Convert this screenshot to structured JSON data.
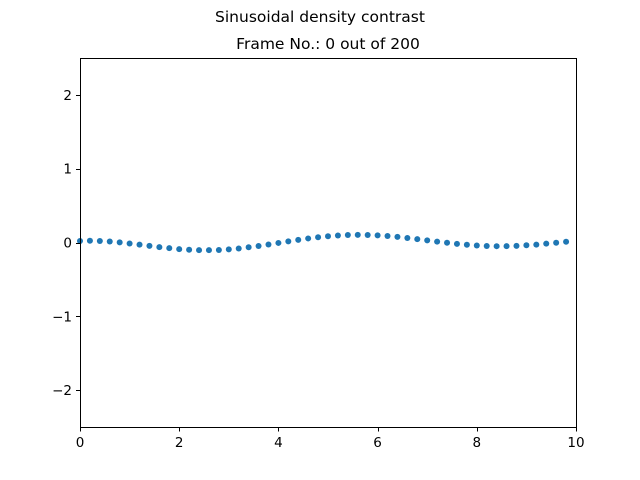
{
  "figure": {
    "suptitle": "Sinusoidal density contrast"
  },
  "chart_data": {
    "type": "scatter",
    "title": "Frame No.: 0 out of 200",
    "xlabel": "",
    "ylabel": "",
    "xlim": [
      0,
      10
    ],
    "ylim": [
      -2.5,
      2.5
    ],
    "grid": false,
    "legend": "none",
    "xticks": [
      0,
      2,
      4,
      6,
      8,
      10
    ],
    "xtick_labels": [
      "0",
      "2",
      "4",
      "6",
      "8",
      "10"
    ],
    "yticks": [
      -2,
      -1,
      0,
      1,
      2
    ],
    "ytick_labels": [
      "−2",
      "−1",
      "0",
      "1",
      "2"
    ],
    "marker_color": "#1f77b4",
    "series": [
      {
        "x": [
          0.0,
          0.2,
          0.4,
          0.6,
          0.8,
          1.0,
          1.2,
          1.4,
          1.6,
          1.8,
          2.0,
          2.2,
          2.4,
          2.6,
          2.8,
          3.0,
          3.2,
          3.4,
          3.6,
          3.8,
          4.0,
          4.2,
          4.4,
          4.6,
          4.8,
          5.0,
          5.2,
          5.4,
          5.6,
          5.8,
          6.0,
          6.2,
          6.4,
          6.6,
          6.8,
          7.0,
          7.2,
          7.4,
          7.6,
          7.8,
          8.0,
          8.2,
          8.4,
          8.6,
          8.8,
          9.0,
          9.2,
          9.4,
          9.6,
          9.8
        ],
        "y": [
          0.021,
          0.024,
          0.021,
          0.013,
          0.001,
          -0.013,
          -0.029,
          -0.046,
          -0.062,
          -0.077,
          -0.089,
          -0.098,
          -0.103,
          -0.104,
          -0.101,
          -0.093,
          -0.081,
          -0.065,
          -0.047,
          -0.027,
          -0.006,
          0.016,
          0.036,
          0.055,
          0.071,
          0.085,
          0.095,
          0.101,
          0.104,
          0.102,
          0.097,
          0.088,
          0.076,
          0.061,
          0.045,
          0.029,
          0.012,
          -0.004,
          -0.019,
          -0.031,
          -0.041,
          -0.047,
          -0.05,
          -0.049,
          -0.045,
          -0.038,
          -0.028,
          -0.016,
          -0.003,
          0.01
        ]
      }
    ]
  }
}
